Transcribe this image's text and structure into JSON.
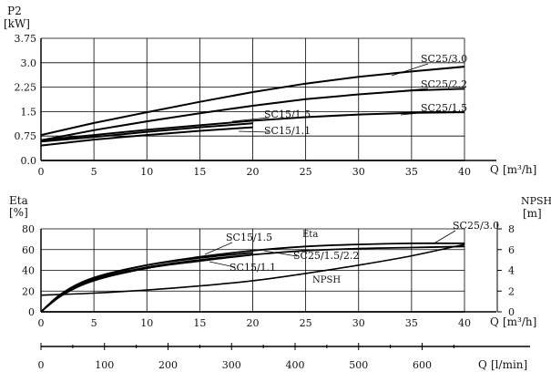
{
  "chart_data": [
    {
      "type": "line",
      "ylabel": "P2",
      "yunit": "[kW]",
      "xlabel": "Q",
      "xunit": "[m³/h]",
      "xlim": [
        0,
        40
      ],
      "ylim": [
        0,
        3.75
      ],
      "xticks": [
        "0",
        "5",
        "10",
        "15",
        "20",
        "25",
        "30",
        "35",
        "40"
      ],
      "yticks": [
        "0.0",
        "0.75",
        "1.5",
        "2.25",
        "3.0",
        "3.75"
      ],
      "series": [
        {
          "name": "SC25/3.0",
          "x": [
            0,
            5,
            10,
            15,
            20,
            25,
            30,
            35,
            40
          ],
          "y": [
            0.78,
            1.15,
            1.48,
            1.8,
            2.1,
            2.36,
            2.57,
            2.73,
            2.88
          ]
        },
        {
          "name": "SC25/2.2",
          "x": [
            0,
            5,
            10,
            15,
            20,
            25,
            30,
            35,
            40
          ],
          "y": [
            0.62,
            0.93,
            1.2,
            1.45,
            1.68,
            1.88,
            2.03,
            2.15,
            2.2
          ]
        },
        {
          "name": "SC25/1.5",
          "x": [
            0,
            5,
            10,
            15,
            20,
            25,
            30,
            35,
            40
          ],
          "y": [
            0.62,
            0.78,
            0.94,
            1.08,
            1.22,
            1.33,
            1.41,
            1.46,
            1.48
          ]
        },
        {
          "name": "SC15/1.5",
          "x": [
            0,
            5,
            10,
            15,
            20
          ],
          "y": [
            0.58,
            0.72,
            0.88,
            1.02,
            1.14
          ]
        },
        {
          "name": "SC15/1.1",
          "x": [
            0,
            5,
            10,
            15,
            20
          ],
          "y": [
            0.46,
            0.64,
            0.78,
            0.91,
            1.02
          ]
        }
      ]
    },
    {
      "type": "line",
      "ylabel": "Eta",
      "yunit": "[%]",
      "y2label": "NPSH",
      "y2unit": "[m]",
      "xlabel": "Q",
      "xunit": "[m³/h]",
      "xlim": [
        0,
        40
      ],
      "ylim": [
        0,
        80
      ],
      "y2lim": [
        0,
        8
      ],
      "xticks": [
        "0",
        "5",
        "10",
        "15",
        "20",
        "25",
        "30",
        "35",
        "40"
      ],
      "yticks": [
        "0",
        "20",
        "40",
        "60",
        "80"
      ],
      "y2ticks": [
        "0",
        "2",
        "4",
        "6",
        "8"
      ],
      "x2label": "Q",
      "x2unit": "[l/min]",
      "x2lim": [
        0,
        666.67
      ],
      "x2ticks": [
        "0",
        "100",
        "200",
        "300",
        "400",
        "500",
        "600"
      ],
      "annotations": [
        "Eta",
        "NPSH"
      ],
      "series": [
        {
          "name": "SC15/1.5",
          "x": [
            0,
            2,
            5,
            10,
            15,
            20
          ],
          "y": [
            0,
            18,
            33,
            45,
            52,
            57
          ]
        },
        {
          "name": "SC15/1.1",
          "x": [
            0,
            2,
            5,
            10,
            15,
            20
          ],
          "y": [
            0,
            16,
            30,
            42,
            49,
            55
          ]
        },
        {
          "name": "SC25/1.5/2.2",
          "x": [
            0,
            2,
            5,
            10,
            15,
            20,
            25,
            30,
            35,
            40
          ],
          "y": [
            0,
            17,
            31,
            43,
            50,
            55,
            59,
            61,
            62,
            63
          ]
        },
        {
          "name": "SC25/3.0",
          "x": [
            0,
            2,
            5,
            10,
            15,
            20,
            25,
            30,
            35,
            40
          ],
          "y": [
            0,
            17,
            32,
            45,
            53,
            59,
            63,
            65,
            66,
            66
          ]
        },
        {
          "name": "NPSH",
          "axis": "y2",
          "x": [
            0,
            5,
            10,
            15,
            20,
            25,
            30,
            35,
            40
          ],
          "y": [
            1.6,
            1.8,
            2.1,
            2.5,
            3.0,
            3.7,
            4.5,
            5.4,
            6.5
          ]
        }
      ]
    }
  ]
}
